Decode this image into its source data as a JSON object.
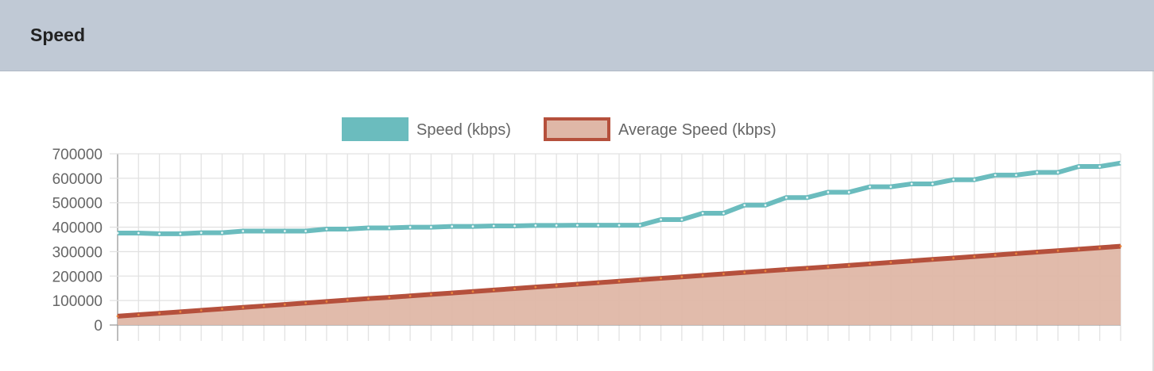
{
  "header": {
    "title": "Speed"
  },
  "chart_data": {
    "type": "line",
    "title": "",
    "xlabel": "",
    "ylabel": "",
    "ylim": [
      0,
      700000
    ],
    "yticks": [
      "700000",
      "600000",
      "500000",
      "400000",
      "300000",
      "200000",
      "100000",
      "0"
    ],
    "grid": true,
    "legend_position": "top",
    "x_count": 49,
    "series": [
      {
        "name": "Speed (kbps)",
        "color": "#6bbcbe",
        "fill": false,
        "values": [
          376000,
          376000,
          373000,
          373000,
          377000,
          377000,
          384000,
          384000,
          384000,
          384000,
          392000,
          392000,
          397000,
          397000,
          400000,
          400000,
          403000,
          403000,
          405000,
          405000,
          407000,
          407000,
          408000,
          408000,
          408000,
          408000,
          431000,
          431000,
          457000,
          457000,
          490000,
          490000,
          521000,
          521000,
          543000,
          543000,
          565000,
          565000,
          577000,
          577000,
          594000,
          594000,
          613000,
          613000,
          624000,
          624000,
          648000,
          648000,
          662000
        ]
      },
      {
        "name": "Average Speed (kbps)",
        "color": "#b5503c",
        "fill": true,
        "fill_color": "#dfb7a7",
        "values": [
          36000,
          42000,
          48000,
          54000,
          60000,
          66000,
          72000,
          78000,
          84000,
          90000,
          96000,
          102000,
          108000,
          113000,
          119000,
          125000,
          131000,
          137000,
          143000,
          149000,
          155000,
          161000,
          167000,
          173000,
          179000,
          185000,
          191000,
          197000,
          203000,
          209000,
          215000,
          221000,
          227000,
          232000,
          238000,
          244000,
          250000,
          256000,
          262000,
          268000,
          274000,
          280000,
          286000,
          292000,
          298000,
          304000,
          310000,
          316000,
          322000
        ]
      }
    ]
  }
}
